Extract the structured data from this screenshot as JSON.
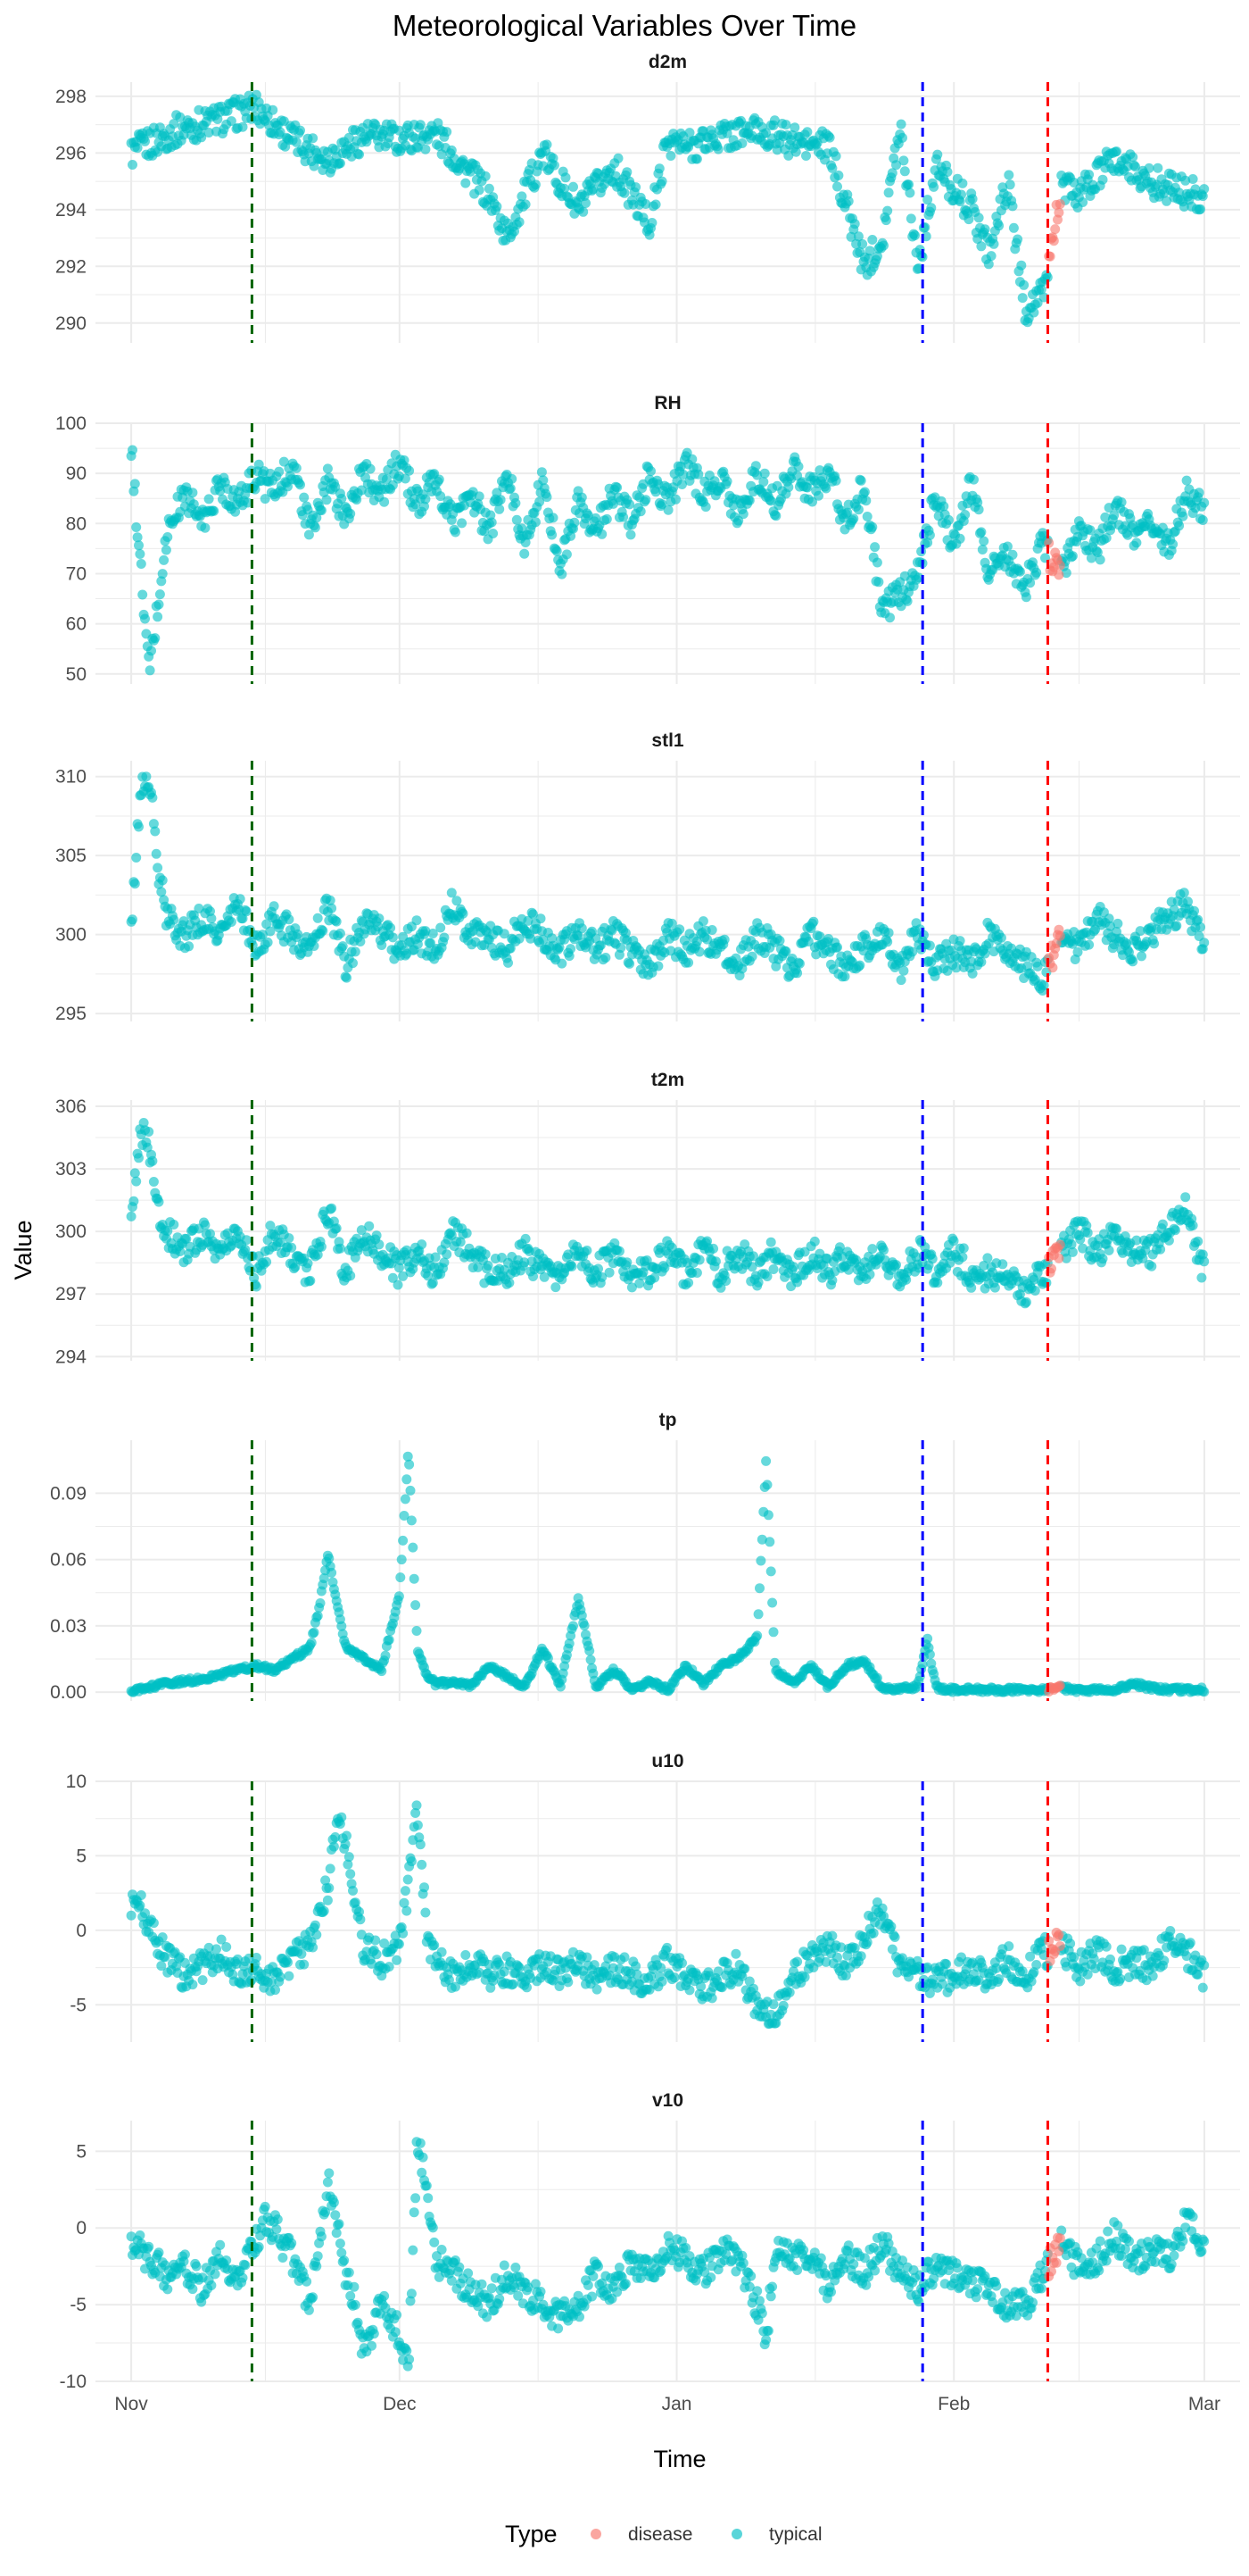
{
  "chart_data": {
    "type": "scatter",
    "title": "Meteorological Variables Over Time",
    "xlabel": "Time",
    "ylabel": "Value",
    "x_ticks": [
      "Nov",
      "Dec",
      "Jan",
      "Feb",
      "Mar"
    ],
    "x_tick_days": [
      0,
      30,
      61,
      92,
      120
    ],
    "x_range_days": [
      -4,
      124
    ],
    "vlines": [
      {
        "day": 13.5,
        "color": "#006400"
      },
      {
        "day": 88.5,
        "color": "#0000ff"
      },
      {
        "day": 102.5,
        "color": "#ff0000"
      }
    ],
    "disease_window_days": [
      102.5,
      104
    ],
    "colors": {
      "typical": "#00BFC4",
      "disease": "#F8766D",
      "grid": "#ebebeb"
    },
    "legend": {
      "title": "Type",
      "position": "bottom",
      "items": [
        {
          "label": "disease",
          "color": "#F8766D"
        },
        {
          "label": "typical",
          "color": "#00BFC4"
        }
      ]
    },
    "panels": [
      {
        "name": "d2m",
        "ylim": [
          289.3,
          298.5
        ],
        "yticks": [
          290,
          292,
          294,
          296,
          298
        ],
        "tick_labels": [
          "290",
          "292",
          "294",
          "296",
          "298"
        ],
        "series": [
          {
            "x": [
              0,
              5,
              10,
              14,
              18,
              22,
              26,
              30,
              34,
              38,
              40,
              42,
              46,
              50,
              54,
              58,
              60,
              62,
              66,
              70,
              74,
              78,
              82,
              84,
              86,
              88,
              90,
              94,
              96,
              98,
              100,
              102,
              104,
              106,
              110,
              114,
              118,
              120
            ],
            "y": [
              296,
              296.8,
              297.2,
              297.6,
              296.5,
              295.8,
              296.6,
              296.5,
              296.7,
              295.2,
              294.5,
              293,
              296,
              294,
              295.5,
              293.5,
              296.5,
              296.2,
              296.6,
              296.8,
              296.4,
              296.2,
              292,
              293,
              297,
              292,
              295.5,
              294,
              292.5,
              295,
              290.5,
              291,
              294.8,
              294.5,
              295.8,
              295,
              294.6,
              294.5
            ]
          }
        ]
      },
      {
        "name": "RH",
        "ylim": [
          48,
          100
        ],
        "yticks": [
          50,
          60,
          70,
          80,
          90,
          100
        ],
        "tick_labels": [
          "50",
          "60",
          "70",
          "80",
          "90",
          "100"
        ],
        "series": [
          {
            "x": [
              0,
              1,
              2,
              4,
              6,
              8,
              10,
              12,
              14,
              16,
              18,
              20,
              22,
              24,
              26,
              28,
              30,
              32,
              34,
              36,
              38,
              40,
              42,
              44,
              46,
              48,
              50,
              52,
              54,
              56,
              58,
              60,
              62,
              64,
              66,
              68,
              70,
              72,
              74,
              76,
              78,
              80,
              82,
              84,
              86,
              88,
              90,
              92,
              94,
              96,
              98,
              100,
              102,
              104,
              106,
              108,
              110,
              112,
              114,
              116,
              118,
              120
            ],
            "y": [
              95,
              72,
              50,
              78,
              86,
              80,
              88,
              84,
              90,
              86,
              92,
              78,
              88,
              82,
              90,
              86,
              92,
              84,
              88,
              80,
              86,
              78,
              90,
              76,
              88,
              72,
              84,
              78,
              86,
              80,
              90,
              84,
              92,
              86,
              88,
              82,
              90,
              84,
              92,
              86,
              90,
              80,
              88,
              62,
              66,
              70,
              86,
              76,
              88,
              70,
              74,
              68,
              76,
              70,
              80,
              74,
              84,
              78,
              80,
              76,
              86,
              82
            ]
          }
        ]
      },
      {
        "name": "stl1",
        "ylim": [
          294.5,
          311
        ],
        "yticks": [
          295,
          300,
          305,
          310
        ],
        "tick_labels": [
          "295",
          "300",
          "305",
          "310"
        ],
        "series": [
          {
            "x": [
              0,
              1,
              2,
              3,
              4,
              6,
              8,
              10,
              12,
              14,
              16,
              18,
              20,
              22,
              24,
              26,
              28,
              30,
              32,
              34,
              36,
              38,
              40,
              42,
              44,
              46,
              48,
              50,
              52,
              54,
              56,
              58,
              60,
              62,
              64,
              66,
              68,
              70,
              72,
              74,
              76,
              78,
              80,
              82,
              84,
              86,
              88,
              90,
              92,
              94,
              96,
              98,
              100,
              102,
              104,
              106,
              108,
              110,
              112,
              114,
              116,
              118,
              120
            ],
            "y": [
              300,
              309,
              310,
              304,
              301,
              300,
              301,
              300,
              302,
              299,
              301,
              300,
              299,
              302,
              298,
              301,
              300,
              299,
              300,
              299,
              302,
              300,
              300,
              299,
              301,
              300,
              299,
              300,
              299,
              300,
              299,
              298,
              300,
              299,
              300,
              299,
              298,
              300,
              299,
              298,
              300,
              299,
              298,
              299,
              300,
              298,
              300,
              298,
              299,
              298,
              300,
              299,
              298,
              297,
              300,
              299,
              301,
              300,
              299,
              300,
              301,
              302,
              299
            ]
          }
        ]
      },
      {
        "name": "t2m",
        "ylim": [
          293.8,
          306.3
        ],
        "yticks": [
          294,
          297,
          300,
          303,
          306
        ],
        "tick_labels": [
          "294",
          "297",
          "300",
          "303",
          "306"
        ],
        "series": [
          {
            "x": [
              0,
              1,
              2,
              3,
              4,
              6,
              8,
              10,
              12,
              14,
              16,
              18,
              20,
              22,
              24,
              26,
              28,
              30,
              32,
              34,
              36,
              38,
              40,
              42,
              44,
              46,
              48,
              50,
              52,
              54,
              56,
              58,
              60,
              62,
              64,
              66,
              68,
              70,
              72,
              74,
              76,
              78,
              80,
              82,
              84,
              86,
              88,
              90,
              92,
              94,
              96,
              98,
              100,
              102,
              104,
              106,
              108,
              110,
              112,
              114,
              116,
              118,
              120
            ],
            "y": [
              300,
              305,
              304,
              301,
              300,
              299,
              300,
              299,
              300,
              298,
              300,
              299,
              298,
              301,
              298,
              300,
              299,
              298,
              299,
              298,
              300,
              299,
              298,
              298,
              299,
              298,
              298,
              299,
              298,
              299,
              298,
              298,
              299,
              298,
              299,
              298,
              299,
              298,
              299,
              298,
              299,
              298,
              299,
              298,
              299,
              298,
              299,
              298,
              299,
              298,
              298,
              298,
              297,
              298,
              299,
              300,
              299,
              300,
              299,
              299,
              300,
              301,
              298
            ]
          }
        ]
      },
      {
        "name": "tp",
        "ylim": [
          -0.004,
          0.114
        ],
        "yticks": [
          0,
          0.03,
          0.06,
          0.09
        ],
        "tick_labels": [
          "0.00",
          "0.03",
          "0.06",
          "0.09"
        ],
        "series": [
          {
            "x": [
              0,
              4,
              8,
              12,
              14,
              16,
              18,
              20,
              21,
              22,
              24,
              26,
              28,
              30,
              31,
              32,
              33,
              34,
              36,
              38,
              40,
              44,
              46,
              48,
              50,
              52,
              54,
              56,
              58,
              60,
              62,
              64,
              66,
              68,
              70,
              71,
              72,
              74,
              76,
              78,
              80,
              82,
              84,
              86,
              88,
              89,
              90,
              92,
              94,
              96,
              98,
              100,
              102,
              104,
              106,
              108,
              110,
              112,
              114,
              116,
              118,
              120
            ],
            "y": [
              0,
              0.004,
              0.006,
              0.01,
              0.012,
              0.01,
              0.015,
              0.02,
              0.038,
              0.062,
              0.02,
              0.015,
              0.01,
              0.045,
              0.11,
              0.02,
              0.008,
              0.004,
              0.004,
              0.003,
              0.012,
              0.002,
              0.02,
              0.002,
              0.043,
              0.002,
              0.01,
              0.001,
              0.005,
              0.001,
              0.012,
              0.004,
              0.012,
              0.016,
              0.025,
              0.105,
              0.01,
              0.004,
              0.012,
              0.002,
              0.012,
              0.014,
              0.002,
              0.001,
              0.003,
              0.024,
              0.002,
              0.001,
              0.001,
              0.001,
              0.001,
              0.001,
              0.001,
              0.002,
              0.001,
              0.001,
              0.001,
              0.004,
              0.002,
              0.001,
              0.001,
              0.001
            ]
          }
        ]
      },
      {
        "name": "u10",
        "ylim": [
          -7.5,
          10
        ],
        "yticks": [
          -5,
          0,
          5,
          10
        ],
        "tick_labels": [
          "-5",
          "0",
          "5",
          "10"
        ],
        "series": [
          {
            "x": [
              0,
              1,
              2,
              4,
              6,
              8,
              10,
              12,
              14,
              16,
              18,
              20,
              22,
              23,
              24,
              25,
              26,
              28,
              30,
              31,
              32,
              33,
              34,
              36,
              38,
              40,
              42,
              44,
              46,
              48,
              50,
              52,
              54,
              56,
              58,
              60,
              62,
              64,
              66,
              68,
              70,
              72,
              74,
              76,
              78,
              80,
              82,
              84,
              86,
              88,
              90,
              92,
              94,
              96,
              98,
              100,
              102,
              104,
              106,
              108,
              110,
              112,
              114,
              116,
              118,
              120
            ],
            "y": [
              2,
              1.5,
              0,
              -2,
              -3,
              -2.5,
              -1.5,
              -3,
              -2.5,
              -3.5,
              -2,
              -1,
              3,
              8,
              6,
              2,
              -1,
              -2,
              -1,
              3,
              8,
              0,
              -2,
              -3,
              -2,
              -3,
              -2.5,
              -3.5,
              -2,
              -3,
              -2,
              -3.5,
              -2.5,
              -3,
              -3.5,
              -2,
              -3,
              -4,
              -3,
              -2.5,
              -5,
              -6,
              -3,
              -2,
              -1,
              -2.5,
              -0.5,
              1.5,
              -2.5,
              -3,
              -3.5,
              -3,
              -2.5,
              -3,
              -2,
              -3,
              -1.5,
              -1,
              -2.5,
              -1.5,
              -2.5,
              -2,
              -2.5,
              -1,
              -1.5,
              -3
            ]
          }
        ]
      },
      {
        "name": "v10",
        "ylim": [
          -10,
          7
        ],
        "yticks": [
          -10,
          -5,
          0,
          5
        ],
        "tick_labels": [
          "-10",
          "-5",
          "0",
          "5"
        ],
        "series": [
          {
            "x": [
              0,
              2,
              4,
              6,
              8,
              10,
              12,
              14,
              15,
              16,
              18,
              20,
              22,
              24,
              25,
              26,
              28,
              30,
              31,
              32,
              33,
              34,
              36,
              38,
              40,
              42,
              44,
              46,
              48,
              50,
              52,
              54,
              56,
              58,
              60,
              62,
              64,
              66,
              68,
              70,
              71,
              72,
              74,
              76,
              78,
              80,
              82,
              84,
              86,
              88,
              90,
              92,
              94,
              96,
              98,
              100,
              102,
              104,
              106,
              108,
              110,
              112,
              114,
              116,
              118,
              120
            ],
            "y": [
              -1,
              -2,
              -3,
              -2.5,
              -4,
              -2,
              -3,
              -1,
              0.5,
              0,
              -2,
              -5,
              3,
              -3,
              -5,
              -8,
              -5,
              -7,
              -9,
              6,
              3,
              -2,
              -3,
              -4,
              -5,
              -3,
              -4,
              -5,
              -6,
              -5,
              -3,
              -4,
              -2,
              -3,
              -1,
              -2,
              -3,
              -1.5,
              -2,
              -5,
              -7.5,
              -1,
              -2,
              -1.5,
              -4,
              -2,
              -3,
              -1,
              -3,
              -4,
              -2.5,
              -3,
              -3.5,
              -4,
              -5,
              -5,
              -3,
              -1,
              -2.5,
              -2,
              -0.5,
              -2,
              -1.5,
              -2,
              0.5,
              -1
            ]
          }
        ]
      }
    ]
  }
}
